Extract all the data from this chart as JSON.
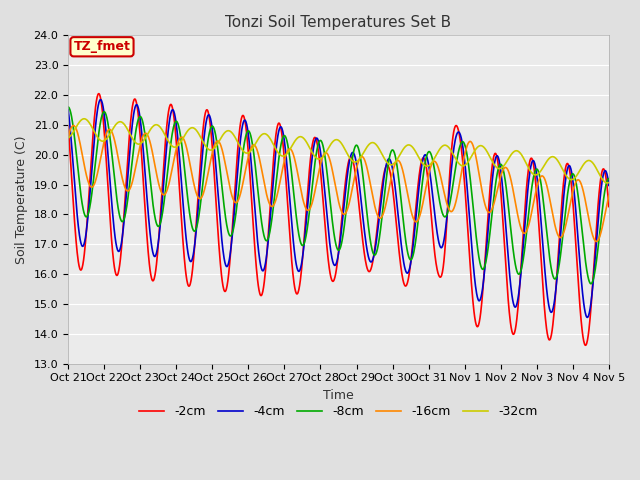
{
  "title": "Tonzi Soil Temperatures Set B",
  "xlabel": "Time",
  "ylabel": "Soil Temperature (C)",
  "annotation": "TZ_fmet",
  "ylim": [
    13.0,
    24.0
  ],
  "yticks": [
    13.0,
    14.0,
    15.0,
    16.0,
    17.0,
    18.0,
    19.0,
    20.0,
    21.0,
    22.0,
    23.0,
    24.0
  ],
  "xtick_labels": [
    "Oct 21",
    "Oct 22",
    "Oct 23",
    "Oct 24",
    "Oct 25",
    "Oct 26",
    "Oct 27",
    "Oct 28",
    "Oct 29",
    "Oct 30",
    "Oct 31",
    "Nov 1",
    "Nov 2",
    "Nov 3",
    "Nov 4",
    "Nov 5"
  ],
  "series_colors": [
    "#ff0000",
    "#0000cc",
    "#00aa00",
    "#ff8800",
    "#cccc00"
  ],
  "series_labels": [
    "-2cm",
    "-4cm",
    "-8cm",
    "-16cm",
    "-32cm"
  ],
  "background_color": "#e0e0e0",
  "plot_bg_color": "#ebebeb",
  "annotation_bg": "#ffffcc",
  "annotation_fg": "#cc0000",
  "grid_color": "#ffffff",
  "title_fontsize": 11,
  "axis_fontsize": 9,
  "tick_fontsize": 8,
  "legend_fontsize": 9,
  "line_width": 1.2
}
